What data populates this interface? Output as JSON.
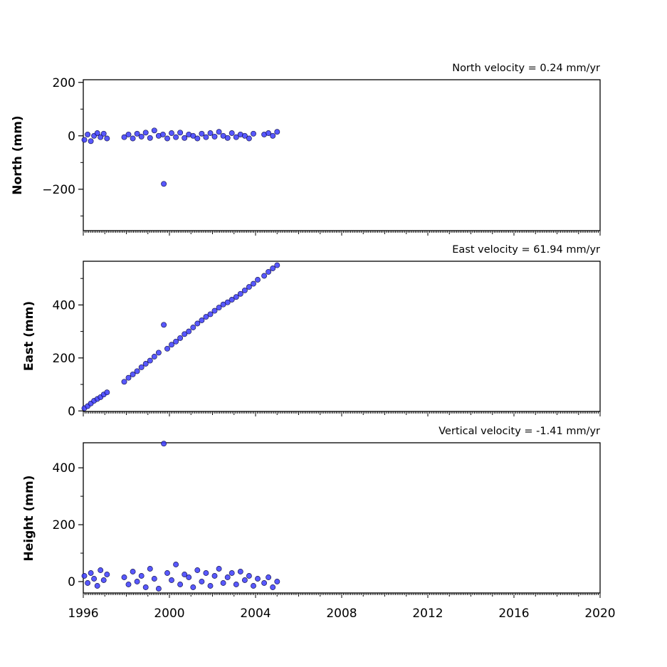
{
  "chart_data": [
    {
      "type": "scatter",
      "ylabel": "North (mm)",
      "annotation": "North velocity = 0.24 mm/yr",
      "xlim": [
        1996,
        2020
      ],
      "ylim": [
        -355,
        210
      ],
      "yticks": [
        200,
        0,
        -200
      ],
      "ytick_labels": [
        "200",
        "0",
        "−200"
      ],
      "grid": false,
      "marker_color": "#3b3bff",
      "points": {
        "x": [
          1996.05,
          1996.2,
          1996.35,
          1996.5,
          1996.65,
          1996.8,
          1996.95,
          1997.1,
          1997.9,
          1998.1,
          1998.3,
          1998.5,
          1998.7,
          1998.9,
          1999.1,
          1999.3,
          1999.5,
          1999.7,
          1999.74,
          1999.9,
          2000.1,
          2000.3,
          2000.5,
          2000.7,
          2000.9,
          2001.1,
          2001.3,
          2001.5,
          2001.7,
          2001.9,
          2002.1,
          2002.3,
          2002.5,
          2002.7,
          2002.9,
          2003.1,
          2003.3,
          2003.5,
          2003.7,
          2003.9,
          2004.4,
          2004.6,
          2004.8,
          2005.0
        ],
        "y": [
          -15,
          5,
          -20,
          0,
          10,
          -5,
          8,
          -10,
          -5,
          5,
          -10,
          8,
          -3,
          12,
          -8,
          20,
          0,
          5,
          -180,
          -10,
          10,
          -5,
          12,
          -8,
          5,
          0,
          -10,
          8,
          -5,
          10,
          -3,
          15,
          0,
          -8,
          10,
          -5,
          5,
          0,
          -10,
          8,
          5,
          10,
          0,
          15
        ]
      }
    },
    {
      "type": "scatter",
      "ylabel": "East (mm)",
      "annotation": "East velocity = 61.94 mm/yr",
      "xlim": [
        1996,
        2020
      ],
      "ylim": [
        -2,
        565
      ],
      "yticks": [
        400,
        200,
        0
      ],
      "ytick_labels": [
        "400",
        "200",
        "0"
      ],
      "grid": false,
      "marker_color": "#3b3bff",
      "points": {
        "x": [
          1996.05,
          1996.2,
          1996.35,
          1996.5,
          1996.65,
          1996.8,
          1996.95,
          1997.1,
          1997.9,
          1998.1,
          1998.3,
          1998.5,
          1998.7,
          1998.9,
          1999.1,
          1999.3,
          1999.5,
          1999.74,
          1999.9,
          2000.1,
          2000.3,
          2000.5,
          2000.7,
          2000.9,
          2001.1,
          2001.3,
          2001.5,
          2001.7,
          2001.9,
          2002.1,
          2002.3,
          2002.5,
          2002.7,
          2002.9,
          2003.1,
          2003.3,
          2003.5,
          2003.7,
          2003.9,
          2004.1,
          2004.4,
          2004.6,
          2004.8,
          2005.0
        ],
        "y": [
          10,
          18,
          28,
          38,
          45,
          52,
          62,
          70,
          110,
          125,
          138,
          150,
          165,
          178,
          190,
          205,
          220,
          325,
          235,
          250,
          262,
          275,
          290,
          300,
          315,
          330,
          342,
          355,
          365,
          378,
          390,
          402,
          410,
          420,
          430,
          442,
          455,
          468,
          480,
          495,
          510,
          525,
          538,
          550
        ]
      }
    },
    {
      "type": "scatter",
      "ylabel": "Height (mm)",
      "annotation": "Vertical velocity = -1.41 mm/yr",
      "xlim": [
        1996,
        2020
      ],
      "xticks": [
        1996,
        2000,
        2004,
        2008,
        2012,
        2016,
        2020
      ],
      "xtick_labels": [
        "1996",
        "2000",
        "2004",
        "2008",
        "2012",
        "2016",
        "2020"
      ],
      "ylim": [
        -40,
        488
      ],
      "yticks": [
        400,
        200,
        0
      ],
      "ytick_labels": [
        "400",
        "200",
        "0"
      ],
      "grid": false,
      "marker_color": "#3b3bff",
      "points": {
        "x": [
          1996.05,
          1996.2,
          1996.35,
          1996.5,
          1996.65,
          1996.8,
          1996.95,
          1997.1,
          1997.9,
          1998.1,
          1998.3,
          1998.5,
          1998.7,
          1998.9,
          1999.1,
          1999.3,
          1999.5,
          1999.74,
          1999.9,
          2000.1,
          2000.3,
          2000.5,
          2000.7,
          2000.9,
          2001.1,
          2001.3,
          2001.5,
          2001.7,
          2001.9,
          2002.1,
          2002.3,
          2002.5,
          2002.7,
          2002.9,
          2003.1,
          2003.3,
          2003.5,
          2003.7,
          2003.9,
          2004.1,
          2004.4,
          2004.6,
          2004.8,
          2005.0
        ],
        "y": [
          20,
          -5,
          30,
          10,
          -15,
          40,
          5,
          25,
          15,
          -10,
          35,
          0,
          20,
          -20,
          45,
          10,
          -25,
          485,
          30,
          5,
          60,
          -10,
          25,
          15,
          -20,
          40,
          0,
          30,
          -15,
          20,
          45,
          -5,
          15,
          30,
          -10,
          35,
          5,
          20,
          -15,
          10,
          -5,
          15,
          -20,
          0
        ]
      }
    }
  ]
}
